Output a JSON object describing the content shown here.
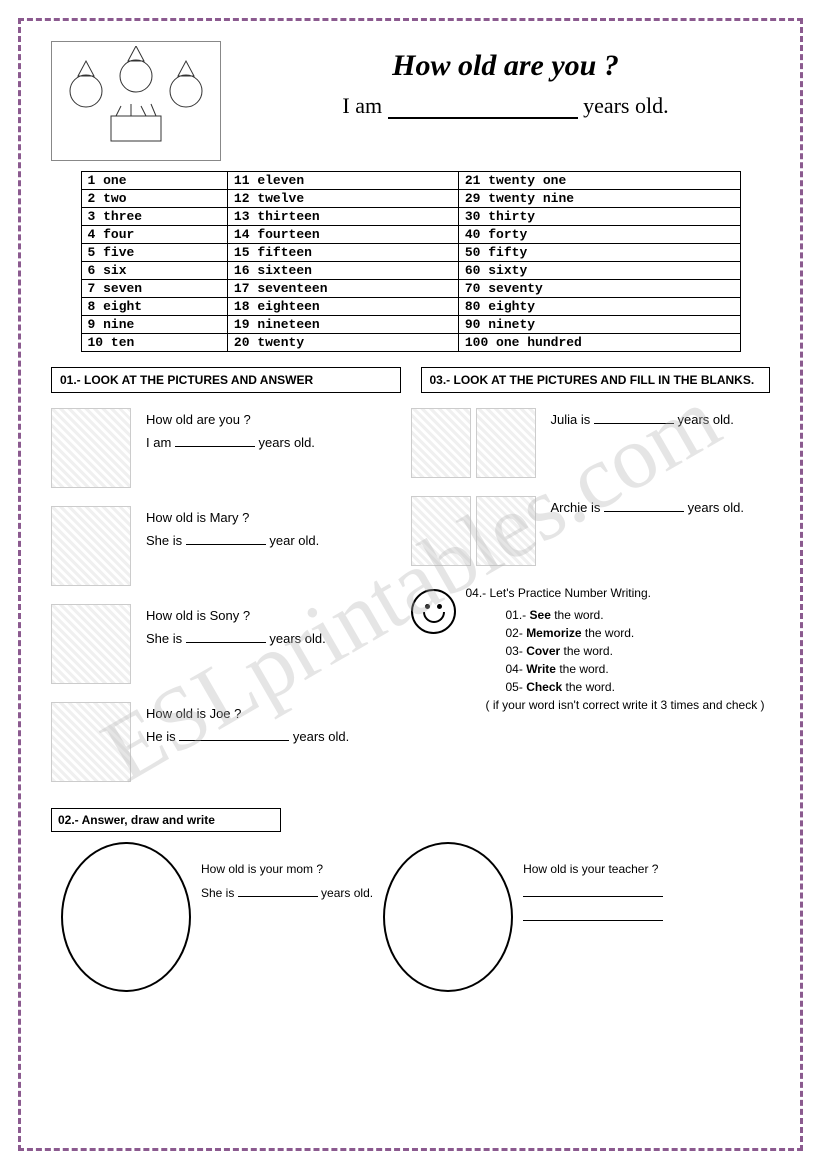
{
  "watermark": "ESLprintables.com",
  "title": "How old are you ?",
  "subtitle_prefix": "I am",
  "subtitle_suffix": "years old.",
  "numbers": {
    "col1": [
      "1 one",
      "2 two",
      "3 three",
      "4 four",
      "5 five",
      "6 six",
      "7 seven",
      "8 eight",
      "9 nine",
      "10 ten"
    ],
    "col2": [
      "11 eleven",
      "12 twelve",
      "13 thirteen",
      "14 fourteen",
      "15 fifteen",
      "16 sixteen",
      "17 seventeen",
      "18 eighteen",
      "19 nineteen",
      "20 twenty"
    ],
    "col3": [
      "21 twenty one",
      "29 twenty nine",
      "30 thirty",
      "40 forty",
      "50 fifty",
      "60 sixty",
      "70 seventy",
      "80 eighty",
      "90 ninety",
      "100 one hundred"
    ]
  },
  "section01": "01.- LOOK AT THE PICTURES AND ANSWER",
  "section03": "03.- LOOK AT THE PICTURES AND FILL IN THE BLANKS.",
  "section02": "02.- Answer, draw and write",
  "ex1": {
    "q": "How old are you ?",
    "a_pre": "I am",
    "a_post": "years old."
  },
  "ex2": {
    "q": "How old is Mary ?",
    "a_pre": "She is",
    "a_post": "year old."
  },
  "ex3": {
    "q": "How old is  Sony ?",
    "a_pre": "She is",
    "a_post": "years old."
  },
  "ex4": {
    "q": "How old is Joe ?",
    "a_pre": "He is",
    "a_post": "years old."
  },
  "ex5": {
    "a_pre": "Julia is",
    "a_post": "years old."
  },
  "ex6": {
    "a_pre": "Archie is",
    "a_post": "years old."
  },
  "practice": {
    "title": "04.- Let's Practice Number Writing.",
    "items": [
      {
        "n": "01.-",
        "b": "See",
        "t": " the word."
      },
      {
        "n": "02-",
        "b": "Memorize",
        "t": " the word."
      },
      {
        "n": "03-",
        "b": "Cover",
        "t": " the word."
      },
      {
        "n": "04-",
        "b": "Write",
        "t": " the word."
      },
      {
        "n": "05-",
        "b": "Check",
        "t": " the word."
      }
    ],
    "note": "( if your word isn't correct write it 3 times and check )"
  },
  "bottom1": {
    "q": "How old is your mom ?",
    "a_pre": "She is",
    "a_post": "years old."
  },
  "bottom2": {
    "q": "How old is your teacher ?"
  }
}
